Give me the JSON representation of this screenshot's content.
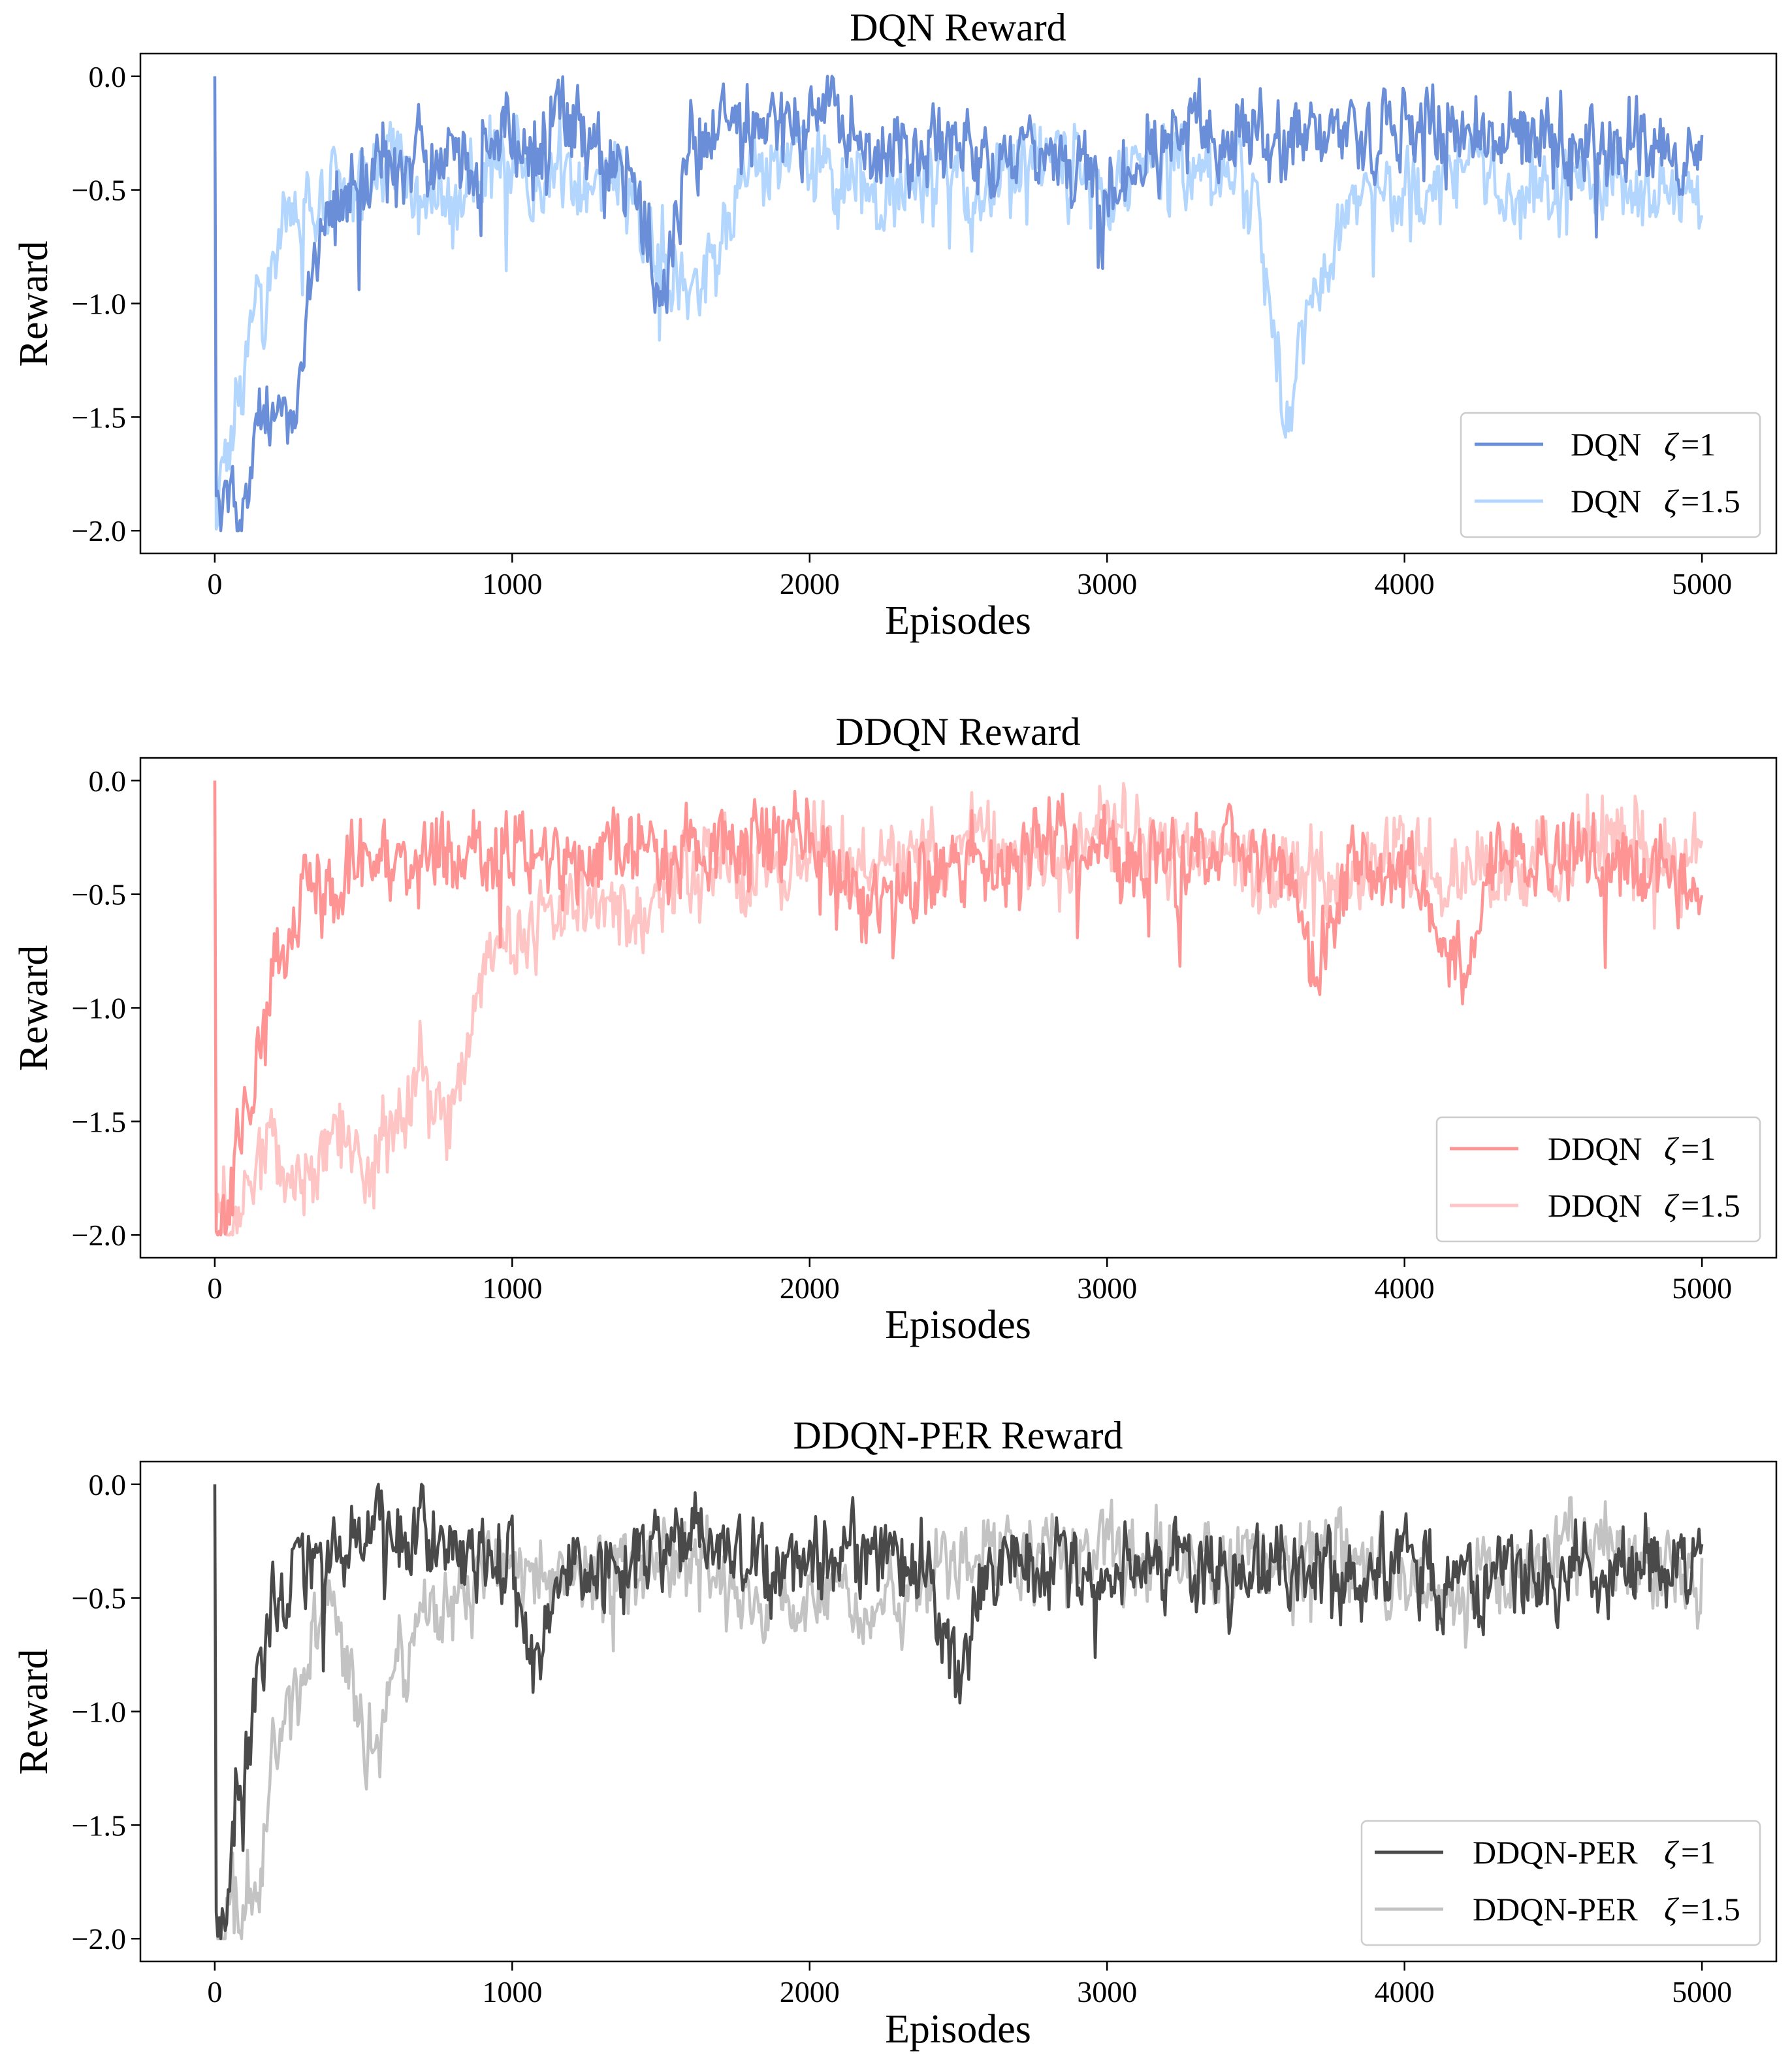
{
  "chart_data": [
    {
      "type": "line",
      "title": "DQN Reward",
      "xlabel": "Episodes",
      "ylabel": "Reward",
      "xlim": [
        -250,
        5250
      ],
      "ylim": [
        -2.1,
        0.1
      ],
      "xticks": [
        0,
        1000,
        2000,
        3000,
        4000,
        5000
      ],
      "xtick_labels": [
        "0",
        "1000",
        "2000",
        "3000",
        "4000",
        "5000"
      ],
      "yticks": [
        0.0,
        -0.5,
        -1.0,
        -1.5,
        -2.0
      ],
      "ytick_labels": [
        "0.0",
        "−0.5",
        "−1.0",
        "−1.5",
        "−2.0"
      ],
      "legend_position": "lower-right",
      "series": [
        {
          "name": "DQN",
          "param": "ζ",
          "param_value": "=1",
          "color": "#6a8fd8",
          "points": [
            [
              0,
              -2.0
            ],
            [
              50,
              -1.8
            ],
            [
              100,
              -1.9
            ],
            [
              150,
              -1.5
            ],
            [
              200,
              -1.35
            ],
            [
              250,
              -1.45
            ],
            [
              300,
              -1.15
            ],
            [
              350,
              -0.9
            ],
            [
              400,
              -0.6
            ],
            [
              500,
              -0.45
            ],
            [
              600,
              -0.35
            ],
            [
              700,
              -0.35
            ],
            [
              800,
              -0.45
            ],
            [
              1000,
              -0.25
            ],
            [
              1200,
              -0.3
            ],
            [
              1400,
              -0.4
            ],
            [
              1500,
              -1.0
            ],
            [
              1600,
              -0.3
            ],
            [
              1800,
              -0.25
            ],
            [
              2000,
              -0.2
            ],
            [
              2200,
              -0.35
            ],
            [
              2400,
              -0.3
            ],
            [
              2600,
              -0.35
            ],
            [
              2800,
              -0.3
            ],
            [
              3000,
              -0.55
            ],
            [
              3200,
              -0.2
            ],
            [
              3400,
              -0.25
            ],
            [
              3600,
              -0.3
            ],
            [
              3800,
              -0.25
            ],
            [
              4000,
              -0.2
            ],
            [
              4200,
              -0.25
            ],
            [
              4400,
              -0.3
            ],
            [
              4600,
              -0.3
            ],
            [
              4800,
              -0.35
            ],
            [
              5000,
              -0.4
            ]
          ]
        },
        {
          "name": "DQN",
          "param": "ζ",
          "param_value": "=1.5",
          "color": "#b3d6ff",
          "points": [
            [
              0,
              -2.0
            ],
            [
              50,
              -1.5
            ],
            [
              100,
              -1.3
            ],
            [
              150,
              -1.0
            ],
            [
              200,
              -0.8
            ],
            [
              250,
              -0.5
            ],
            [
              300,
              -0.7
            ],
            [
              350,
              -0.55
            ],
            [
              400,
              -0.5
            ],
            [
              500,
              -0.45
            ],
            [
              600,
              -0.45
            ],
            [
              800,
              -0.5
            ],
            [
              1000,
              -0.35
            ],
            [
              1200,
              -0.45
            ],
            [
              1400,
              -0.55
            ],
            [
              1500,
              -0.8
            ],
            [
              1600,
              -0.9
            ],
            [
              1800,
              -0.45
            ],
            [
              2000,
              -0.35
            ],
            [
              2200,
              -0.55
            ],
            [
              2400,
              -0.45
            ],
            [
              2600,
              -0.5
            ],
            [
              2800,
              -0.4
            ],
            [
              3000,
              -0.5
            ],
            [
              3200,
              -0.35
            ],
            [
              3400,
              -0.4
            ],
            [
              3500,
              -0.55
            ],
            [
              3600,
              -1.5
            ],
            [
              3700,
              -1.0
            ],
            [
              3800,
              -0.55
            ],
            [
              4000,
              -0.5
            ],
            [
              4200,
              -0.45
            ],
            [
              4400,
              -0.5
            ],
            [
              4600,
              -0.45
            ],
            [
              4800,
              -0.5
            ],
            [
              5000,
              -0.5
            ]
          ]
        }
      ]
    },
    {
      "type": "line",
      "title": "DDQN Reward",
      "xlabel": "Episodes",
      "ylabel": "Reward",
      "xlim": [
        -250,
        5250
      ],
      "ylim": [
        -2.1,
        0.1
      ],
      "xticks": [
        0,
        1000,
        2000,
        3000,
        4000,
        5000
      ],
      "xtick_labels": [
        "0",
        "1000",
        "2000",
        "3000",
        "4000",
        "5000"
      ],
      "yticks": [
        0.0,
        -0.5,
        -1.0,
        -1.5,
        -2.0
      ],
      "ytick_labels": [
        "0.0",
        "−0.5",
        "−1.0",
        "−1.5",
        "−2.0"
      ],
      "legend_position": "lower-right",
      "series": [
        {
          "name": "DDQN",
          "param": "ζ",
          "param_value": "=1",
          "color": "#ff9494",
          "points": [
            [
              0,
              -2.0
            ],
            [
              50,
              -1.8
            ],
            [
              100,
              -1.5
            ],
            [
              150,
              -1.2
            ],
            [
              200,
              -0.9
            ],
            [
              250,
              -0.7
            ],
            [
              300,
              -0.5
            ],
            [
              400,
              -0.45
            ],
            [
              500,
              -0.4
            ],
            [
              700,
              -0.35
            ],
            [
              1000,
              -0.3
            ],
            [
              1200,
              -0.35
            ],
            [
              1400,
              -0.3
            ],
            [
              1600,
              -0.35
            ],
            [
              1800,
              -0.3
            ],
            [
              2000,
              -0.3
            ],
            [
              2200,
              -0.55
            ],
            [
              2400,
              -0.4
            ],
            [
              2600,
              -0.35
            ],
            [
              2800,
              -0.3
            ],
            [
              3000,
              -0.3
            ],
            [
              3200,
              -0.4
            ],
            [
              3400,
              -0.35
            ],
            [
              3600,
              -0.4
            ],
            [
              3700,
              -0.85
            ],
            [
              3800,
              -0.45
            ],
            [
              4000,
              -0.35
            ],
            [
              4200,
              -0.85
            ],
            [
              4300,
              -0.4
            ],
            [
              4400,
              -0.35
            ],
            [
              4600,
              -0.3
            ],
            [
              4800,
              -0.35
            ],
            [
              5000,
              -0.5
            ]
          ]
        },
        {
          "name": "DDQN",
          "param": "ζ",
          "param_value": "=1.5",
          "color": "#ffc4c4",
          "points": [
            [
              0,
              -2.0
            ],
            [
              50,
              -1.9
            ],
            [
              100,
              -1.8
            ],
            [
              150,
              -1.65
            ],
            [
              200,
              -1.6
            ],
            [
              300,
              -1.8
            ],
            [
              400,
              -1.55
            ],
            [
              500,
              -1.7
            ],
            [
              600,
              -1.5
            ],
            [
              700,
              -1.3
            ],
            [
              800,
              -1.45
            ],
            [
              900,
              -0.9
            ],
            [
              1000,
              -0.7
            ],
            [
              1100,
              -0.6
            ],
            [
              1200,
              -0.5
            ],
            [
              1400,
              -0.65
            ],
            [
              1600,
              -0.35
            ],
            [
              1800,
              -0.4
            ],
            [
              2000,
              -0.35
            ],
            [
              2200,
              -0.4
            ],
            [
              2400,
              -0.3
            ],
            [
              2600,
              -0.25
            ],
            [
              2800,
              -0.3
            ],
            [
              3000,
              -0.25
            ],
            [
              3200,
              -0.3
            ],
            [
              3400,
              -0.3
            ],
            [
              3600,
              -0.45
            ],
            [
              3800,
              -0.4
            ],
            [
              4000,
              -0.35
            ],
            [
              4200,
              -0.45
            ],
            [
              4400,
              -0.3
            ],
            [
              4600,
              -0.25
            ],
            [
              4800,
              -0.3
            ],
            [
              5000,
              -0.2
            ]
          ]
        }
      ]
    },
    {
      "type": "line",
      "title": "DDQN-PER Reward",
      "xlabel": "Episodes",
      "ylabel": "Reward",
      "xlim": [
        -250,
        5250
      ],
      "ylim": [
        -2.1,
        0.1
      ],
      "xticks": [
        0,
        1000,
        2000,
        3000,
        4000,
        5000
      ],
      "xtick_labels": [
        "0",
        "1000",
        "2000",
        "3000",
        "4000",
        "5000"
      ],
      "yticks": [
        0.0,
        -0.5,
        -1.0,
        -1.5,
        -2.0
      ],
      "ytick_labels": [
        "0.0",
        "−0.5",
        "−1.0",
        "−1.5",
        "−2.0"
      ],
      "legend_position": "lower-right",
      "series": [
        {
          "name": "DDQN-PER",
          "param": "ζ",
          "param_value": "=1",
          "color": "#4a4a4a",
          "points": [
            [
              0,
              -2.0
            ],
            [
              50,
              -1.6
            ],
            [
              100,
              -1.2
            ],
            [
              150,
              -0.8
            ],
            [
              200,
              -0.5
            ],
            [
              300,
              -0.35
            ],
            [
              400,
              -0.25
            ],
            [
              600,
              -0.2
            ],
            [
              800,
              -0.25
            ],
            [
              1000,
              -0.3
            ],
            [
              1050,
              -0.9
            ],
            [
              1200,
              -0.35
            ],
            [
              1400,
              -0.3
            ],
            [
              1600,
              -0.25
            ],
            [
              1800,
              -0.35
            ],
            [
              2000,
              -0.3
            ],
            [
              2200,
              -0.3
            ],
            [
              2400,
              -0.4
            ],
            [
              2500,
              -0.9
            ],
            [
              2600,
              -0.35
            ],
            [
              2800,
              -0.35
            ],
            [
              3000,
              -0.4
            ],
            [
              3200,
              -0.35
            ],
            [
              3400,
              -0.4
            ],
            [
              3600,
              -0.35
            ],
            [
              3800,
              -0.4
            ],
            [
              4000,
              -0.35
            ],
            [
              4200,
              -0.4
            ],
            [
              4400,
              -0.35
            ],
            [
              4600,
              -0.35
            ],
            [
              4800,
              -0.35
            ],
            [
              5000,
              -0.35
            ]
          ]
        },
        {
          "name": "DDQN-PER",
          "param": "ζ",
          "param_value": "=1.5",
          "color": "#c3c3c3",
          "points": [
            [
              0,
              -2.0
            ],
            [
              50,
              -1.9
            ],
            [
              100,
              -1.85
            ],
            [
              150,
              -1.6
            ],
            [
              200,
              -1.2
            ],
            [
              300,
              -0.8
            ],
            [
              400,
              -0.55
            ],
            [
              500,
              -1.1
            ],
            [
              550,
              -1.25
            ],
            [
              600,
              -0.85
            ],
            [
              700,
              -0.6
            ],
            [
              800,
              -0.45
            ],
            [
              900,
              -0.4
            ],
            [
              1000,
              -0.35
            ],
            [
              1200,
              -0.45
            ],
            [
              1400,
              -0.4
            ],
            [
              1600,
              -0.35
            ],
            [
              1800,
              -0.45
            ],
            [
              2000,
              -0.4
            ],
            [
              2200,
              -0.6
            ],
            [
              2400,
              -0.35
            ],
            [
              2600,
              -0.3
            ],
            [
              2800,
              -0.35
            ],
            [
              3000,
              -0.3
            ],
            [
              3200,
              -0.35
            ],
            [
              3400,
              -0.3
            ],
            [
              3600,
              -0.35
            ],
            [
              3800,
              -0.35
            ],
            [
              4000,
              -0.45
            ],
            [
              4200,
              -0.4
            ],
            [
              4400,
              -0.4
            ],
            [
              4600,
              -0.25
            ],
            [
              4800,
              -0.3
            ],
            [
              5000,
              -0.45
            ]
          ]
        }
      ]
    }
  ]
}
